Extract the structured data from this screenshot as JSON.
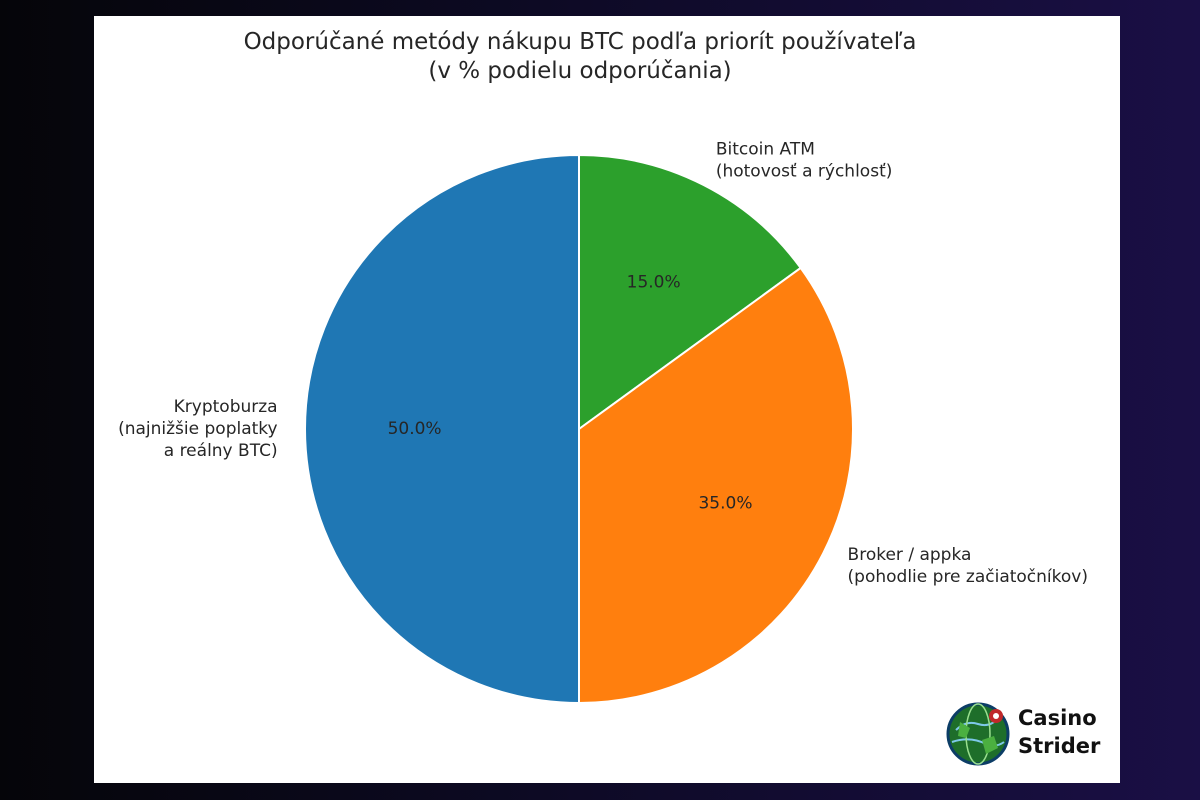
{
  "chart_data": {
    "type": "pie",
    "title": [
      "Odporúčané metódy nákupu BTC podľa priorít používateľa",
      "(v % podielu odporúčania)"
    ],
    "start_angle_deg": 90,
    "direction": "clockwise",
    "slices": [
      {
        "label": [
          "Bitcoin ATM",
          "(hotovosť a rýchlosť)"
        ],
        "value": 15.0,
        "pct_text": "15.0%",
        "color": "#2ca02c"
      },
      {
        "label": [
          "Broker / appka",
          "(pohodlie pre začiatočníkov)"
        ],
        "value": 35.0,
        "pct_text": "35.0%",
        "color": "#ff7f0e"
      },
      {
        "label": [
          "Kryptoburza",
          "(najnižšie poplatky",
          "a reálny BTC)"
        ],
        "value": 50.0,
        "pct_text": "50.0%",
        "color": "#1f77b4"
      }
    ]
  },
  "watermark": {
    "line1": "Casino",
    "line2": "Strider"
  }
}
